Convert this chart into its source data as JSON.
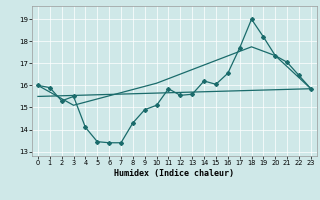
{
  "xlabel": "Humidex (Indice chaleur)",
  "xlim": [
    -0.5,
    23.5
  ],
  "ylim": [
    12.8,
    19.6
  ],
  "yticks": [
    13,
    14,
    15,
    16,
    17,
    18,
    19
  ],
  "xticks": [
    0,
    1,
    2,
    3,
    4,
    5,
    6,
    7,
    8,
    9,
    10,
    11,
    12,
    13,
    14,
    15,
    16,
    17,
    18,
    19,
    20,
    21,
    22,
    23
  ],
  "bg_color": "#cfe8e8",
  "line_color": "#1a6b6b",
  "series1_x": [
    0,
    1,
    2,
    3,
    4,
    5,
    6,
    7,
    8,
    9,
    10,
    11,
    12,
    13,
    14,
    15,
    16,
    17,
    18,
    19,
    20,
    21,
    22,
    23
  ],
  "series1_y": [
    16.0,
    15.9,
    15.3,
    15.5,
    14.1,
    13.45,
    13.4,
    13.4,
    14.3,
    14.9,
    15.1,
    15.85,
    15.55,
    15.6,
    16.2,
    16.05,
    16.55,
    17.7,
    19.0,
    18.2,
    17.35,
    17.05,
    16.45,
    15.85
  ],
  "series2_x": [
    0,
    3,
    10,
    18,
    20,
    23
  ],
  "series2_y": [
    16.0,
    15.1,
    16.1,
    17.75,
    17.35,
    15.85
  ],
  "series3_x": [
    0,
    23
  ],
  "series3_y": [
    15.5,
    15.85
  ]
}
